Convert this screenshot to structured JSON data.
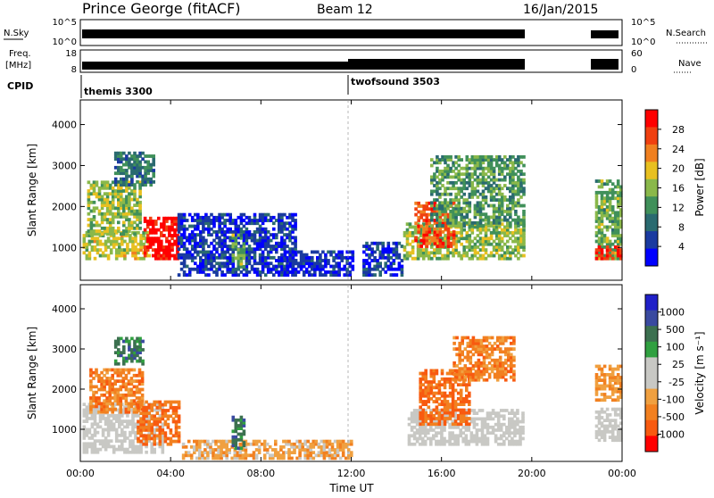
{
  "header": {
    "station": "Prince George (fitACF)",
    "beam": "Beam 12",
    "date": "16/Jan/2015"
  },
  "top_panels": {
    "nsky_label": "N.Sky",
    "nsky_ticks": [
      "10^5",
      "10^0"
    ],
    "nsearch_label": "N.Search",
    "nsearch_ticks": [
      "10^5",
      "10^0"
    ],
    "freq_label_1": "Freq.",
    "freq_label_2": "[MHz]",
    "freq_ticks": [
      "18",
      "8"
    ],
    "nave_label": "Nave",
    "nave_ticks": [
      "60",
      "0"
    ],
    "cpid_label": "CPID",
    "cpid_modes": [
      {
        "name": "themis 3300",
        "start_hour": 0
      },
      {
        "name": "twofsound 3503",
        "start_hour": 12
      }
    ]
  },
  "colors": {
    "power_scale": [
      "#0000ff",
      "#1a3aa0",
      "#2a6a70",
      "#40905a",
      "#8ab84a",
      "#e8c020",
      "#f08020",
      "#f04010",
      "#ff0000"
    ],
    "velocity_scale": [
      "#ff0000",
      "#f85a10",
      "#f28020",
      "#f0a040",
      "#c8c8c4",
      "#c8c8c4",
      "#30a040",
      "#3c7050",
      "#3a4aa0",
      "#2020c8"
    ]
  },
  "chart_data": [
    {
      "type": "heatmap",
      "name": "power",
      "xlabel": "",
      "ylabel": "Slant Range [km]",
      "xlim": [
        0,
        24
      ],
      "ylim": [
        200,
        4600
      ],
      "yticks": [
        "1000",
        "2000",
        "3000",
        "4000"
      ],
      "colorbar_label": "Power [dB]",
      "colorbar_ticks": [
        "28",
        "24",
        "20",
        "16",
        "12",
        "8",
        "4"
      ],
      "regions": [
        {
          "t0": 0.1,
          "t1": 3.0,
          "r0": 700,
          "r1": 1400,
          "level": 0.55
        },
        {
          "t0": 0.3,
          "t1": 2.6,
          "r0": 1300,
          "r1": 2600,
          "level": 0.5
        },
        {
          "t0": 2.8,
          "t1": 4.3,
          "r0": 700,
          "r1": 1700,
          "level": 0.95
        },
        {
          "t0": 1.5,
          "t1": 3.2,
          "r0": 2500,
          "r1": 3300,
          "level": 0.3
        },
        {
          "t0": 4.3,
          "t1": 9.5,
          "r0": 300,
          "r1": 1800,
          "level": 0.15
        },
        {
          "t0": 6.7,
          "t1": 7.3,
          "r0": 500,
          "r1": 1300,
          "level": 0.45
        },
        {
          "t0": 9.0,
          "t1": 12.0,
          "r0": 300,
          "r1": 900,
          "level": 0.12
        },
        {
          "t0": 12.5,
          "t1": 14.2,
          "r0": 300,
          "r1": 1100,
          "level": 0.15
        },
        {
          "t0": 14.3,
          "t1": 19.6,
          "r0": 700,
          "r1": 1600,
          "level": 0.5
        },
        {
          "t0": 14.8,
          "t1": 16.5,
          "r0": 1000,
          "r1": 2100,
          "level": 0.8
        },
        {
          "t0": 15.5,
          "t1": 19.6,
          "r0": 1500,
          "r1": 3200,
          "level": 0.4
        },
        {
          "t0": 22.8,
          "t1": 23.9,
          "r0": 700,
          "r1": 2600,
          "level": 0.45
        },
        {
          "t0": 22.8,
          "t1": 23.9,
          "r0": 700,
          "r1": 1000,
          "level": 0.9
        }
      ]
    },
    {
      "type": "heatmap",
      "name": "velocity",
      "xlabel": "Time UT",
      "ylabel": "Slant Range [km]",
      "xlim": [
        0,
        24
      ],
      "ylim": [
        200,
        4600
      ],
      "xticks": [
        "00:00",
        "04:00",
        "08:00",
        "12:00",
        "16:00",
        "20:00",
        "00:00"
      ],
      "yticks": [
        "1000",
        "2000",
        "3000",
        "4000"
      ],
      "colorbar_label": "Velocity [m s⁻¹]",
      "colorbar_ticks": [
        "1000",
        "500",
        "100",
        "25",
        "-25",
        "-100",
        "-500",
        "-1000"
      ],
      "regions": [
        {
          "t0": 0.1,
          "t1": 3.6,
          "r0": 400,
          "r1": 1600,
          "level": 0.5
        },
        {
          "t0": 0.4,
          "t1": 2.8,
          "r0": 1400,
          "r1": 2500,
          "level": 0.25
        },
        {
          "t0": 2.5,
          "t1": 4.4,
          "r0": 600,
          "r1": 1700,
          "level": 0.2
        },
        {
          "t0": 1.5,
          "t1": 2.8,
          "r0": 2600,
          "r1": 3300,
          "level": 0.75
        },
        {
          "t0": 4.5,
          "t1": 12.0,
          "r0": 250,
          "r1": 700,
          "level": 0.35
        },
        {
          "t0": 6.7,
          "t1": 7.3,
          "r0": 500,
          "r1": 1300,
          "level": 0.75
        },
        {
          "t0": 14.5,
          "t1": 19.6,
          "r0": 600,
          "r1": 1500,
          "level": 0.5
        },
        {
          "t0": 15.0,
          "t1": 17.2,
          "r0": 1100,
          "r1": 2500,
          "level": 0.2
        },
        {
          "t0": 16.5,
          "t1": 19.2,
          "r0": 2200,
          "r1": 3300,
          "level": 0.25
        },
        {
          "t0": 22.8,
          "t1": 23.9,
          "r0": 700,
          "r1": 1500,
          "level": 0.5
        },
        {
          "t0": 22.8,
          "t1": 23.9,
          "r0": 1700,
          "r1": 2600,
          "level": 0.3
        }
      ]
    }
  ]
}
